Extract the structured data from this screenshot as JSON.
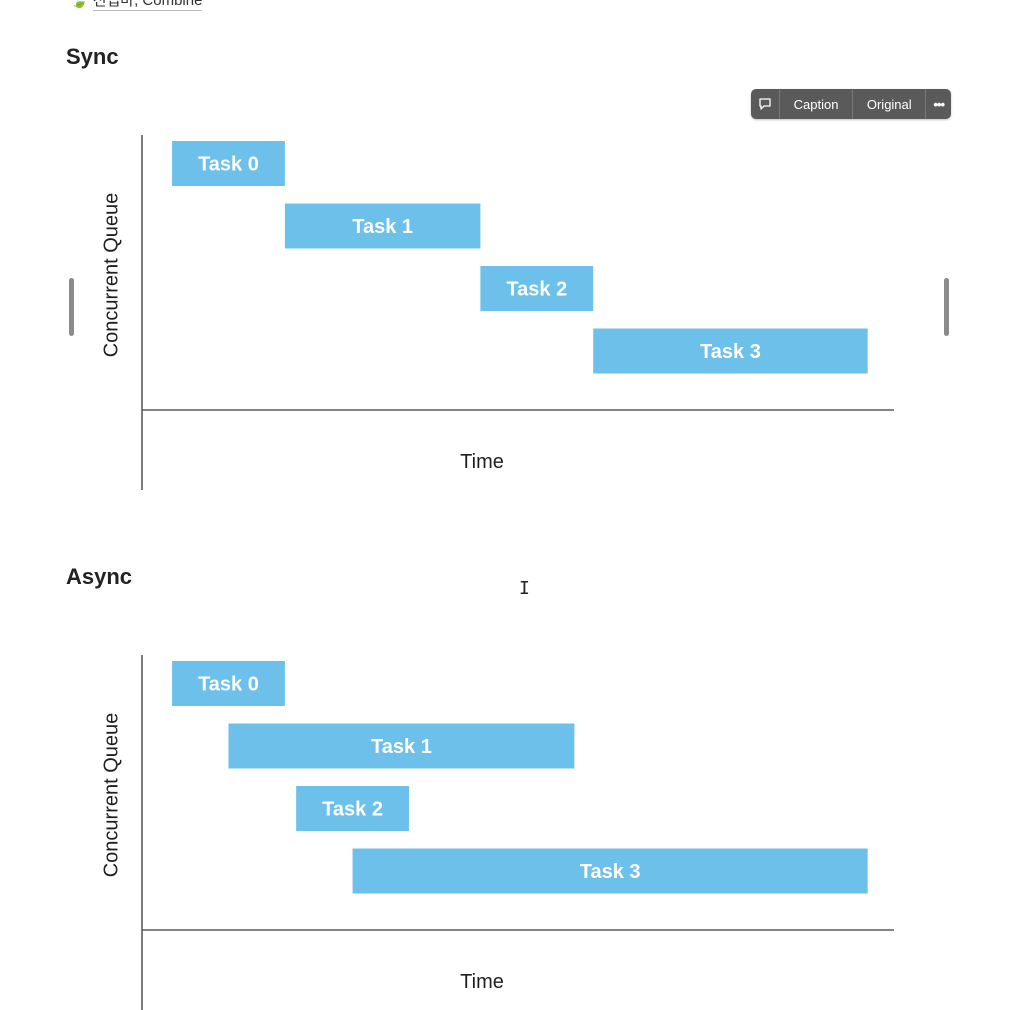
{
  "header": {
    "breadcrumb_text": "전업마, Combine"
  },
  "toolbar": {
    "caption_label": "Caption",
    "original_label": "Original",
    "more_label": "•••"
  },
  "colors": {
    "bar": "#6cc0ea",
    "axis": "#5a5a5a",
    "toolbar_bg": "#5a5a5a"
  },
  "diagrams": [
    {
      "title": "Sync",
      "ylabel": "Concurrent Queue",
      "xlabel": "Time",
      "time_range": [
        0,
        100
      ],
      "tasks": [
        {
          "label": "Task 0",
          "row": 0,
          "start": 4,
          "end": 19
        },
        {
          "label": "Task 1",
          "row": 1,
          "start": 19,
          "end": 45
        },
        {
          "label": "Task 2",
          "row": 2,
          "start": 45,
          "end": 60
        },
        {
          "label": "Task 3",
          "row": 3,
          "start": 60,
          "end": 96.5
        }
      ]
    },
    {
      "title": "Async",
      "ylabel": "Concurrent Queue",
      "xlabel": "Time",
      "time_range": [
        0,
        100
      ],
      "tasks": [
        {
          "label": "Task 0",
          "row": 0,
          "start": 4,
          "end": 19
        },
        {
          "label": "Task 1",
          "row": 1,
          "start": 11.5,
          "end": 57.5
        },
        {
          "label": "Task 2",
          "row": 2,
          "start": 20.5,
          "end": 35.5
        },
        {
          "label": "Task 3",
          "row": 3,
          "start": 28,
          "end": 96.5
        }
      ]
    }
  ]
}
